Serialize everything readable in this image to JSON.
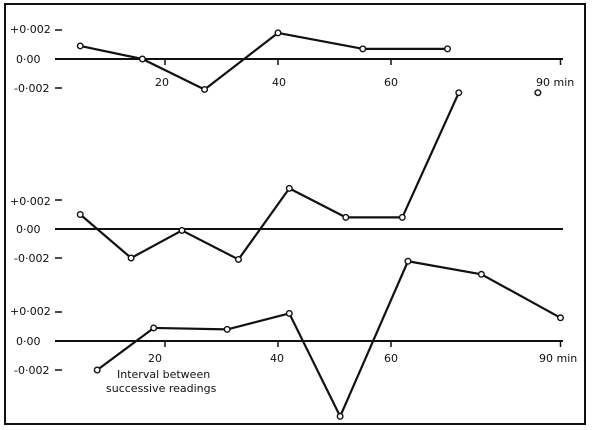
{
  "chart_data": [
    {
      "type": "line",
      "x_tick_labels": [
        "20",
        "40",
        "60",
        "90 min"
      ],
      "y_tick_labels": [
        "+0·002",
        "0·00",
        "-0·002"
      ],
      "series": [
        {
          "x": [
            5,
            16,
            27,
            40,
            55,
            70
          ],
          "y": [
            0.0009,
            0.0,
            -0.0021,
            0.0018,
            0.0007,
            0.0007
          ],
          "breaks_after_index": []
        }
      ]
    },
    {
      "type": "line",
      "x_tick_labels": [],
      "y_tick_labels": [
        "+0·002",
        "0·00",
        "-0·002"
      ],
      "series": [
        {
          "x": [
            5,
            14,
            23,
            33,
            42,
            52,
            62,
            72,
            86
          ],
          "y": [
            0.001,
            -0.002,
            -0.0001,
            -0.0021,
            0.0028,
            0.0008,
            0.0008,
            0.0094,
            0.0094
          ],
          "breaks_after_index": [
            7
          ]
        }
      ]
    },
    {
      "type": "line",
      "x_tick_labels": [
        "20",
        "40",
        "60",
        "90 min"
      ],
      "y_tick_labels": [
        "+0·002",
        "0·00",
        "-0·002"
      ],
      "annotation": "Interval between successive readings",
      "series": [
        {
          "x": [
            8,
            18,
            31,
            42,
            51,
            63,
            76,
            90
          ],
          "y": [
            -0.002,
            0.0009,
            0.0008,
            0.0019,
            -0.0052,
            0.0055,
            0.0046,
            0.0016
          ],
          "breaks_after_index": []
        }
      ]
    }
  ],
  "axis_style": {
    "color": "#111111"
  }
}
